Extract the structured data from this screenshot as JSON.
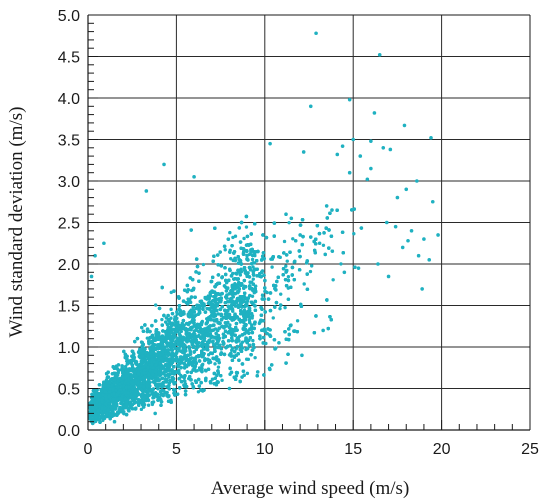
{
  "chart_data": {
    "type": "scatter",
    "title": "",
    "xlabel": "Average wind speed (m/s)",
    "ylabel": "Wind standard deviation (m/s)",
    "xlim": [
      0,
      25
    ],
    "ylim": [
      0,
      5
    ],
    "x_ticks": [
      0,
      5,
      10,
      15,
      20,
      25
    ],
    "x_tick_labels": [
      "0",
      "5",
      "10",
      "15",
      "20",
      "25"
    ],
    "y_ticks": [
      0,
      0.5,
      1,
      1.5,
      2,
      2.5,
      3,
      3.5,
      4,
      4.5,
      5
    ],
    "y_tick_labels": [
      "0.0",
      "0.5",
      "1.0",
      "1.5",
      "2.0",
      "2.5",
      "3.0",
      "3.5",
      "4.0",
      "4.5",
      "5.0"
    ],
    "grid": true,
    "point_color": "#1fb1c1",
    "series": [
      {
        "x": [
          12.9,
          16.5,
          12.6,
          14.8,
          16.2,
          17.9,
          19.4,
          15.0,
          16.0,
          10.3,
          14.4,
          16.7,
          17.1,
          12.2,
          14.1,
          15.4,
          4.3,
          16.0,
          14.8,
          6.0,
          15.8,
          18.6,
          18.0,
          3.3,
          17.5,
          19.5,
          13.5,
          13.8,
          11.2,
          16.9,
          17.4,
          18.3,
          19.8,
          19.0,
          18.1,
          13.1,
          17.8,
          18.7,
          19.3,
          16.4,
          15.3,
          14.5,
          12.0,
          11.5,
          17.0,
          18.9,
          0.9,
          0.4,
          0.2,
          1.5,
          3.8,
          8.0,
          12.1,
          13.3,
          9.6,
          10.8
        ],
        "y": [
          4.78,
          4.52,
          3.9,
          3.98,
          3.82,
          3.67,
          3.52,
          3.5,
          3.48,
          3.45,
          3.42,
          3.4,
          3.38,
          3.35,
          3.32,
          3.3,
          3.2,
          3.15,
          3.1,
          3.05,
          3.02,
          3.0,
          2.9,
          2.88,
          2.8,
          2.75,
          2.7,
          2.65,
          2.6,
          2.5,
          2.45,
          2.4,
          2.35,
          2.3,
          2.28,
          2.25,
          2.2,
          2.1,
          2.05,
          2.0,
          1.95,
          1.9,
          2.35,
          2.55,
          1.85,
          1.7,
          2.25,
          2.1,
          1.85,
          0.1,
          0.2,
          0.5,
          0.9,
          1.2,
          0.7,
          1.05
        ]
      }
    ],
    "cloud": {
      "x_range": [
        0,
        15
      ],
      "y_range": [
        0.05,
        2.7
      ],
      "note_density_peak_x": 2.5
    }
  }
}
